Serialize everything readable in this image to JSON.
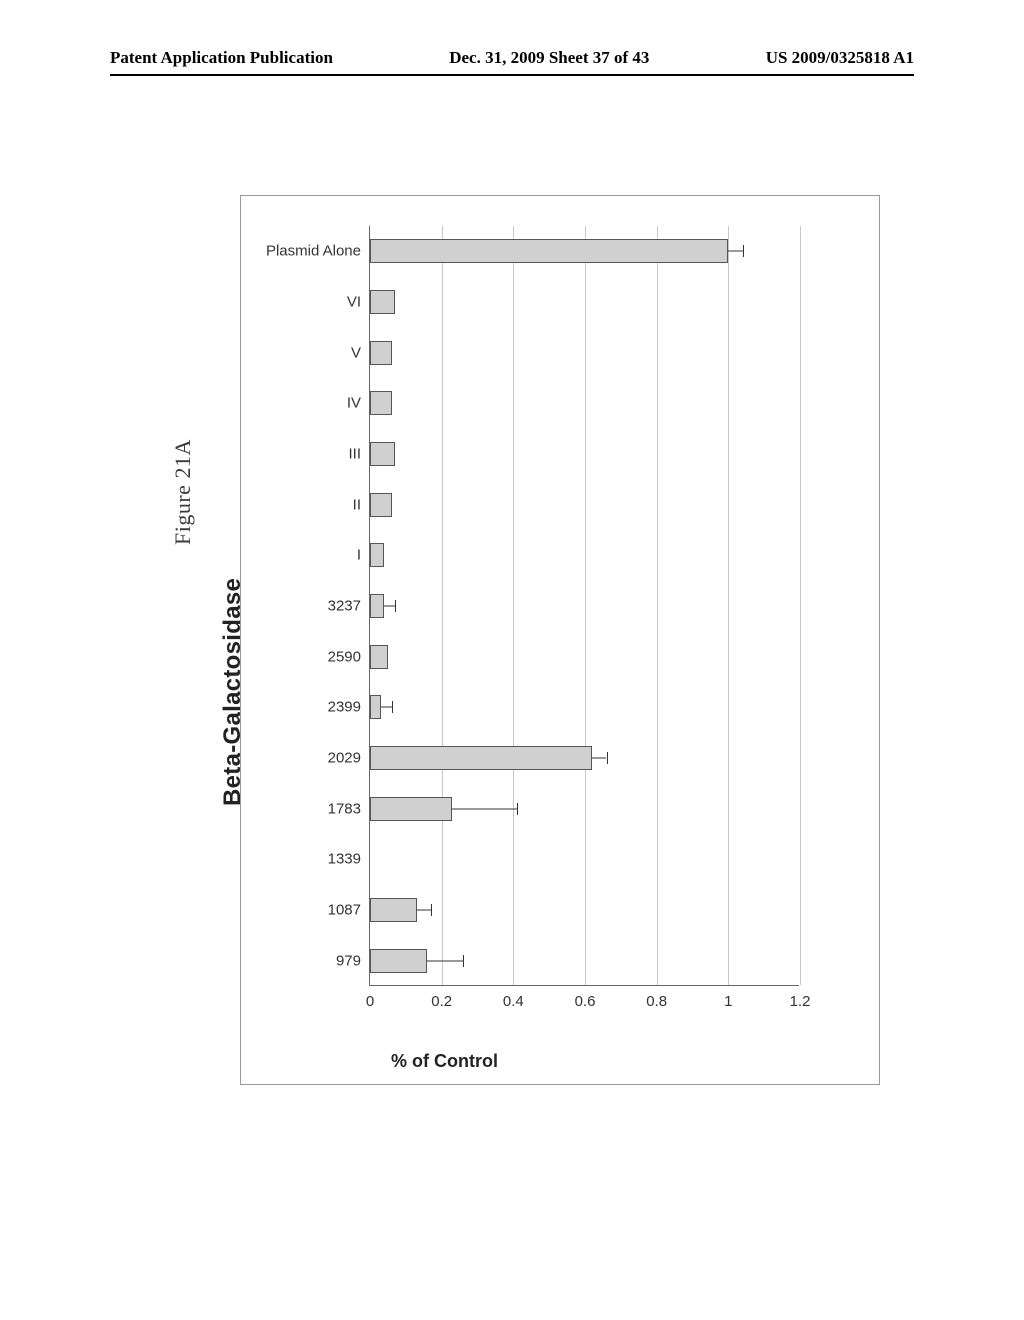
{
  "header": {
    "left": "Patent Application Publication",
    "center": "Dec. 31, 2009  Sheet 37 of 43",
    "right": "US 2009/0325818 A1"
  },
  "figure_label": "Figure 21A",
  "chart": {
    "type": "bar",
    "orientation": "horizontal",
    "title": "Beta-Galactosidase",
    "y_axis_label": "% of Control",
    "max_value": 1.2,
    "ticks": [
      0,
      0.2,
      0.4,
      0.6,
      0.8,
      1,
      1.2
    ],
    "bar_fill": "#d0d0d0",
    "bar_border": "#555555",
    "grid_color": "#c8c8c8",
    "background_color": "#ffffff",
    "categories": [
      {
        "label": "979",
        "value": 0.16,
        "err": 0.1
      },
      {
        "label": "1087",
        "value": 0.13,
        "err": 0.04
      },
      {
        "label": "1339",
        "value": 0.0,
        "err": 0.0
      },
      {
        "label": "1783",
        "value": 0.23,
        "err": 0.18
      },
      {
        "label": "2029",
        "value": 0.62,
        "err": 0.04
      },
      {
        "label": "2399",
        "value": 0.03,
        "err": 0.03
      },
      {
        "label": "2590",
        "value": 0.05,
        "err": 0.0
      },
      {
        "label": "3237",
        "value": 0.04,
        "err": 0.03
      },
      {
        "label": "I",
        "value": 0.04,
        "err": 0.0
      },
      {
        "label": "II",
        "value": 0.06,
        "err": 0.0
      },
      {
        "label": "III",
        "value": 0.07,
        "err": 0.0
      },
      {
        "label": "IV",
        "value": 0.06,
        "err": 0.0
      },
      {
        "label": "V",
        "value": 0.06,
        "err": 0.0
      },
      {
        "label": "VI",
        "value": 0.07,
        "err": 0.0
      },
      {
        "label": "Plasmid Alone",
        "value": 1.0,
        "err": 0.04
      }
    ]
  }
}
